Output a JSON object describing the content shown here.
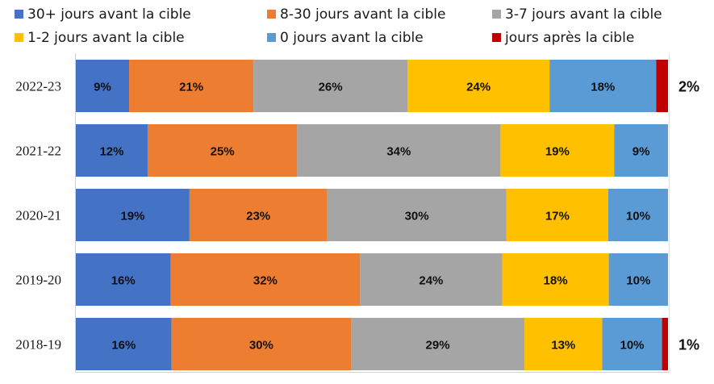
{
  "chart_data": {
    "type": "bar",
    "orientation": "horizontal",
    "stacked": true,
    "normalized": true,
    "title": "",
    "xlabel": "",
    "ylabel": "",
    "xlim": [
      0,
      100
    ],
    "grid": false,
    "legend_position": "top",
    "categories": [
      "2022-23",
      "2021-22",
      "2020-21",
      "2019-20",
      "2018-19"
    ],
    "series": [
      {
        "name": "30+ jours avant la cible",
        "color": "#4472C4",
        "values": [
          9,
          12,
          19,
          16,
          16
        ]
      },
      {
        "name": "8-30 jours avant la cible",
        "color": "#ED7D31",
        "values": [
          21,
          25,
          23,
          32,
          30
        ]
      },
      {
        "name": "3-7 jours avant la cible",
        "color": "#A5A5A5",
        "values": [
          26,
          34,
          30,
          24,
          29
        ]
      },
      {
        "name": "1-2 jours avant la cible",
        "color": "#FFC000",
        "values": [
          24,
          19,
          17,
          18,
          13
        ]
      },
      {
        "name": "0 jours avant la cible",
        "color": "#5B9BD5",
        "values": [
          18,
          9,
          10,
          10,
          10
        ]
      },
      {
        "name": "jours après la cible",
        "color": "#C00000",
        "values": [
          2,
          0,
          0,
          0,
          1
        ]
      }
    ],
    "data_labels": [
      [
        "9%",
        "21%",
        "26%",
        "24%",
        "18%",
        "2%"
      ],
      [
        "12%",
        "25%",
        "34%",
        "19%",
        "9%",
        ""
      ],
      [
        "19%",
        "23%",
        "30%",
        "17%",
        "10%",
        ""
      ],
      [
        "16%",
        "32%",
        "24%",
        "18%",
        "10%",
        ""
      ],
      [
        "16%",
        "30%",
        "29%",
        "13%",
        "10%",
        "1%"
      ]
    ]
  }
}
